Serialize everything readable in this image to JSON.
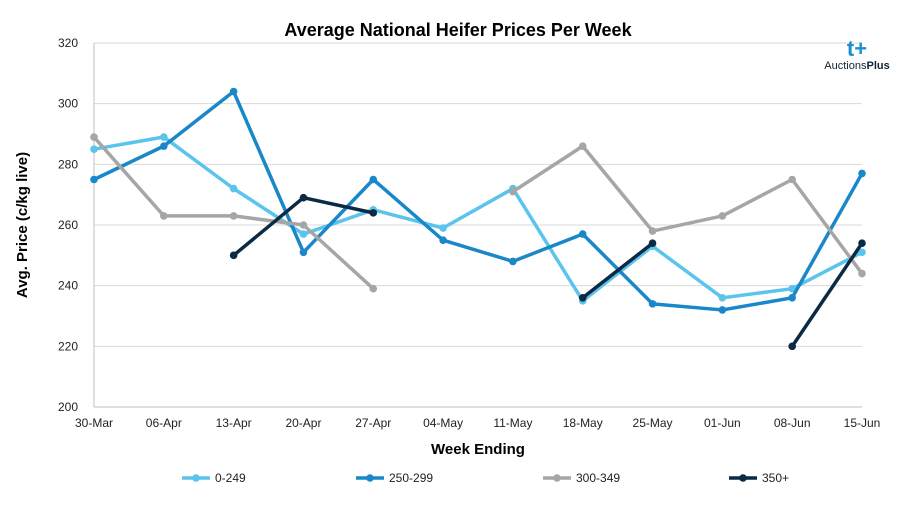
{
  "chart_data": {
    "type": "line",
    "title": "Average National Heifer Prices Per Week",
    "xlabel": "Week Ending",
    "ylabel": "Avg. Price (c/kg live)",
    "ylim": [
      200,
      320
    ],
    "yticks": [
      200,
      220,
      240,
      260,
      280,
      300,
      320
    ],
    "grid": "horizontal",
    "legend": "bottom",
    "categories": [
      "30-Mar",
      "06-Apr",
      "13-Apr",
      "20-Apr",
      "27-Apr",
      "04-May",
      "11-May",
      "18-May",
      "25-May",
      "01-Jun",
      "08-Jun",
      "15-Jun"
    ],
    "series": [
      {
        "name": "0-249",
        "color": "#5bc4ec",
        "values": [
          285,
          289,
          272,
          257,
          265,
          259,
          272,
          235,
          253,
          236,
          239,
          251
        ]
      },
      {
        "name": "250-299",
        "color": "#1a87c8",
        "values": [
          275,
          286,
          304,
          251,
          275,
          255,
          248,
          257,
          234,
          232,
          236,
          277
        ]
      },
      {
        "name": "300-349",
        "color": "#a6a6a6",
        "values": [
          289,
          263,
          263,
          260,
          239,
          null,
          271,
          286,
          258,
          263,
          275,
          244
        ]
      },
      {
        "name": "350+",
        "color": "#0b2a45",
        "values": [
          null,
          null,
          250,
          269,
          264,
          null,
          null,
          236,
          254,
          null,
          220,
          254
        ]
      }
    ]
  },
  "logo": {
    "mark": "t+",
    "text_a": "Auctions",
    "text_b": "Plus"
  }
}
